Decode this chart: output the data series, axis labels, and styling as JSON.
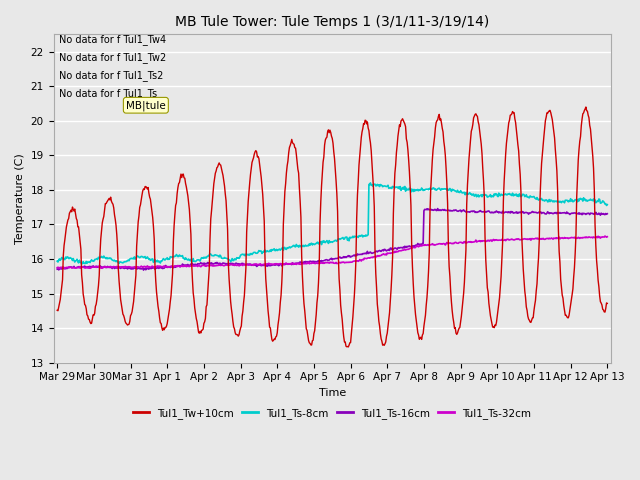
{
  "title": "MB Tule Tower: Tule Temps 1 (3/1/11-3/19/14)",
  "xlabel": "Time",
  "ylabel": "Temperature (C)",
  "ylim": [
    13.0,
    22.5
  ],
  "yticks": [
    13.0,
    14.0,
    15.0,
    16.0,
    17.0,
    18.0,
    19.0,
    20.0,
    21.0,
    22.0
  ],
  "bg_color": "#e8e8e8",
  "grid_color": "#ffffff",
  "legend_labels": [
    "Tul1_Tw+10cm",
    "Tul1_Ts-8cm",
    "Tul1_Ts-16cm",
    "Tul1_Ts-32cm"
  ],
  "legend_colors": [
    "#cc0000",
    "#00cccc",
    "#8800bb",
    "#cc00cc"
  ],
  "no_data_texts": [
    "No data for f Tul1_Tw4",
    "No data for f Tul1_Tw2",
    "No data for f Tul1_Ts2",
    "No data for f Tul1_Ts"
  ],
  "xtick_labels": [
    "Mar 29",
    "Mar 30",
    "Mar 31",
    "Apr 1",
    "Apr 2",
    "Apr 3",
    "Apr 4",
    "Apr 5",
    "Apr 6",
    "Apr 7",
    "Apr 8",
    "Apr 9",
    "Apr 10",
    "Apr 11",
    "Apr 12",
    "Apr 13"
  ],
  "tooltip_text": "MB|tule"
}
